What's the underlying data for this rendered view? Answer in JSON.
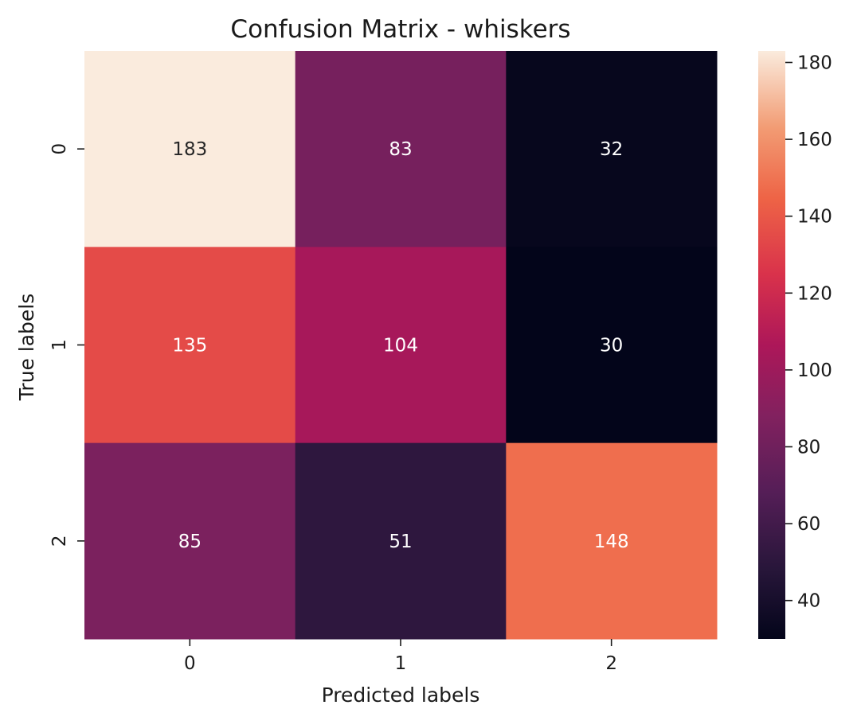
{
  "chart_data": {
    "type": "heatmap",
    "title": "Confusion Matrix - whiskers",
    "xlabel": "Predicted labels",
    "ylabel": "True labels",
    "x_categories": [
      "0",
      "1",
      "2"
    ],
    "y_categories": [
      "0",
      "1",
      "2"
    ],
    "values": [
      [
        183,
        83,
        32
      ],
      [
        135,
        104,
        30
      ],
      [
        85,
        51,
        148
      ]
    ],
    "colormap": "rocket",
    "colorbar": {
      "range": [
        30,
        183
      ],
      "ticks": [
        40,
        60,
        80,
        100,
        120,
        140,
        160,
        180
      ]
    },
    "grid": false,
    "legend": "colorbar-right"
  }
}
